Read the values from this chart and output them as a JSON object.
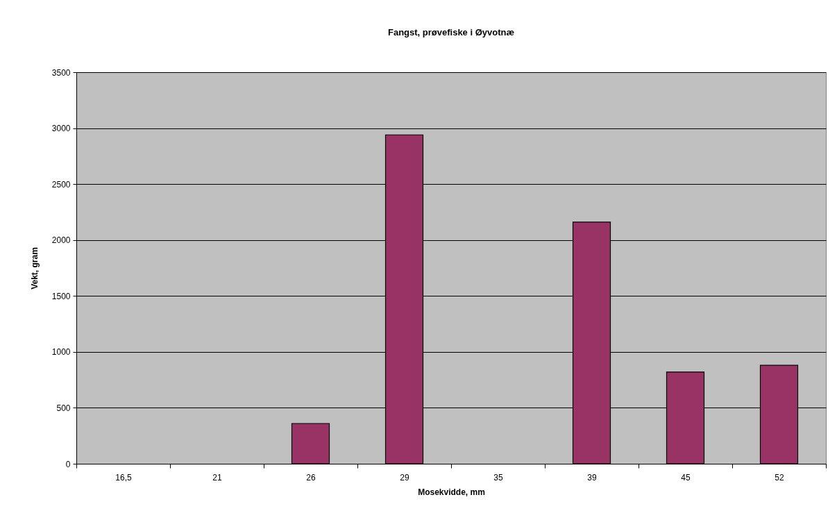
{
  "chart_data": {
    "type": "bar",
    "title": "Fangst, prøvefiske i Øyvotnæ",
    "xlabel": "Mosekvidde, mm",
    "ylabel": "Vekt, gram",
    "categories": [
      "16,5",
      "21",
      "26",
      "29",
      "35",
      "39",
      "45",
      "52"
    ],
    "values": [
      null,
      null,
      360,
      2940,
      null,
      2160,
      820,
      880
    ],
    "color": "#993366",
    "ylim": [
      0,
      3500
    ],
    "yticks": [
      0,
      500,
      1000,
      1500,
      2000,
      2500,
      3000,
      3500
    ],
    "grid": "y"
  }
}
